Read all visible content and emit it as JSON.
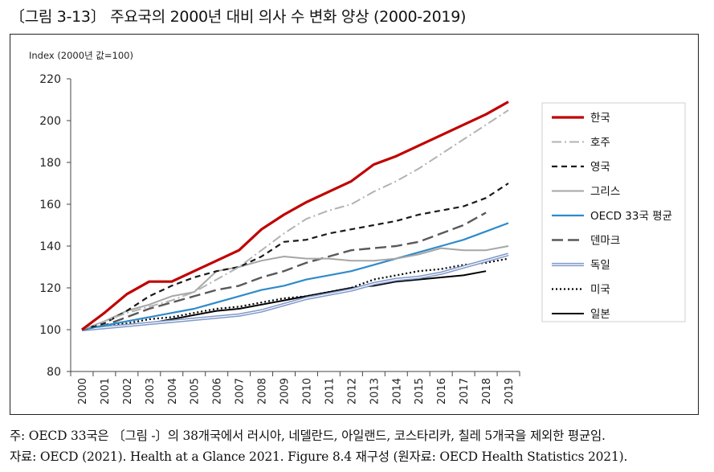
{
  "figure_title": "〔그림 3-13〕 주요국의 2000년 대비 의사 수 변화 양상 (2000-2019)",
  "notes": {
    "note": "주: OECD 33국은 〔그림 -〕의 38개국에서 러시아, 네델란드, 아일랜드, 코스타리카, 칠레 5개국을 제외한 평균임.",
    "source": "자료: OECD (2021). Health at a Glance 2021. Figure 8.4 재구성 (원자료: OECD Health Statistics 2021)."
  },
  "chart_data": {
    "type": "line",
    "ylabel": "Index (2000년 값=100)",
    "xlabel": "",
    "ylim": [
      80,
      220
    ],
    "yticks": [
      80,
      100,
      120,
      140,
      160,
      180,
      200,
      220
    ],
    "x": [
      "2000",
      "2001",
      "2002",
      "2003",
      "2004",
      "2005",
      "2006",
      "2007",
      "2008",
      "2009",
      "2010",
      "2011",
      "2012",
      "2013",
      "2014",
      "2015",
      "2016",
      "2017",
      "2018",
      "2019"
    ],
    "grid": false,
    "legend_position": "right",
    "series": [
      {
        "name": "한국",
        "color": "#c00000",
        "style": "solid",
        "width": 3.2,
        "values": [
          100,
          108,
          117,
          123,
          123,
          128,
          133,
          138,
          148,
          155,
          161,
          166,
          171,
          179,
          183,
          188,
          193,
          198,
          203,
          209
        ]
      },
      {
        "name": "호주",
        "color": "#b3b3b3",
        "style": "dashdot",
        "width": 2,
        "values": [
          100,
          104,
          108,
          111,
          114,
          118,
          124,
          130,
          138,
          146,
          153,
          157,
          160,
          166,
          171,
          177,
          184,
          191,
          198,
          205
        ]
      },
      {
        "name": "영국",
        "color": "#1a1a1a",
        "style": "dashed",
        "width": 2.2,
        "values": [
          100,
          103,
          109,
          116,
          121,
          125,
          128,
          130,
          135,
          142,
          143,
          146,
          148,
          150,
          152,
          155,
          157,
          159,
          163,
          170
        ]
      },
      {
        "name": "그리스",
        "color": "#a6a6a6",
        "style": "solid",
        "width": 2,
        "values": [
          100,
          104,
          109,
          112,
          116,
          118,
          128,
          130,
          133,
          135,
          134,
          134,
          133,
          133,
          134,
          136,
          139,
          138,
          138,
          140
        ]
      },
      {
        "name": "OECD 33국 평균",
        "color": "#2e8bc9",
        "style": "solid",
        "width": 2.2,
        "values": [
          100,
          102,
          104,
          106,
          108,
          110,
          113,
          116,
          119,
          121,
          124,
          126,
          128,
          131,
          134,
          137,
          140,
          143,
          147,
          151
        ]
      },
      {
        "name": "덴마크",
        "color": "#595959",
        "style": "longdash",
        "width": 2.4,
        "values": [
          100,
          102,
          106,
          110,
          113,
          116,
          119,
          121,
          125,
          128,
          132,
          135,
          138,
          139,
          140,
          142,
          146,
          150,
          156,
          null
        ]
      },
      {
        "name": "독일",
        "color": "#8ea9db",
        "style": "double",
        "width": 2,
        "values": [
          100,
          101,
          102,
          103,
          104,
          105,
          106,
          107,
          109,
          112,
          115,
          117,
          119,
          122,
          124,
          125,
          127,
          130,
          133,
          136
        ]
      },
      {
        "name": "미국",
        "color": "#000000",
        "style": "dotted",
        "width": 2.2,
        "values": [
          100,
          102,
          103,
          105,
          106,
          108,
          110,
          111,
          113,
          115,
          116,
          118,
          120,
          124,
          126,
          128,
          129,
          131,
          132,
          134
        ]
      },
      {
        "name": "일본",
        "color": "#000000",
        "style": "solid",
        "width": 2,
        "values": [
          100,
          101,
          102,
          103,
          105,
          107,
          109,
          110,
          112,
          114,
          116,
          118,
          120,
          121,
          123,
          124,
          125,
          126,
          128,
          null
        ]
      }
    ]
  }
}
